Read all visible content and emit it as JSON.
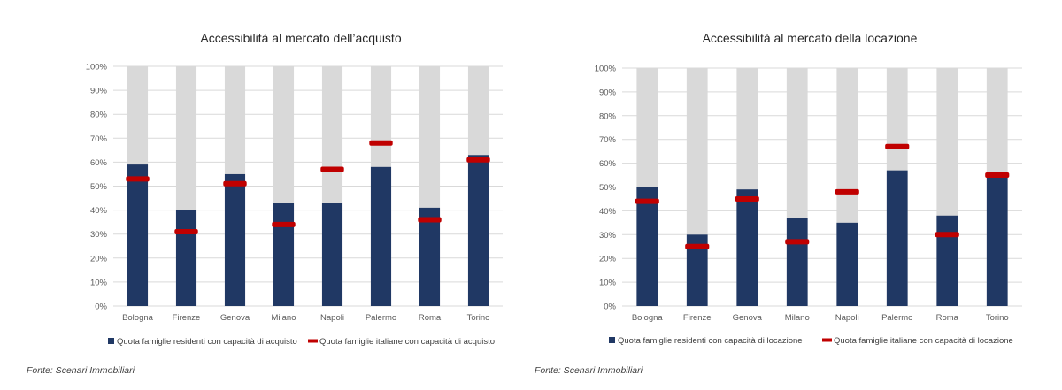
{
  "colors": {
    "bar": "#203864",
    "marker": "#c00000",
    "background_bar": "#d9d9d9",
    "grid": "#d9d9d9"
  },
  "chart_data": [
    {
      "type": "bar",
      "title": "Accessibilità al mercato dell’acquisto",
      "categories": [
        "Bologna",
        "Firenze",
        "Genova",
        "Milano",
        "Napoli",
        "Palermo",
        "Roma",
        "Torino"
      ],
      "series": [
        {
          "name": "Quota famiglie residenti con capacità di acquisto",
          "kind": "bar",
          "values": [
            59,
            40,
            55,
            43,
            43,
            58,
            41,
            63
          ]
        },
        {
          "name": "Quota famiglie italiane con capacità di acquisto",
          "kind": "marker",
          "values": [
            53,
            31,
            51,
            34,
            57,
            68,
            36,
            61
          ]
        }
      ],
      "yticks": [
        "0%",
        "10%",
        "20%",
        "30%",
        "40%",
        "50%",
        "60%",
        "70%",
        "80%",
        "90%",
        "100%"
      ],
      "ylim": [
        0,
        100
      ],
      "legend": "bottom",
      "source": "Fonte: Scenari Immobiliari"
    },
    {
      "type": "bar",
      "title": "Accessibilità al mercato della locazione",
      "categories": [
        "Bologna",
        "Firenze",
        "Genova",
        "Milano",
        "Napoli",
        "Palermo",
        "Roma",
        "Torino"
      ],
      "series": [
        {
          "name": "Quota famiglie residenti con capacità di locazione",
          "kind": "bar",
          "values": [
            50,
            30,
            49,
            37,
            35,
            57,
            38,
            55
          ]
        },
        {
          "name": "Quota famiglie italiane con capacità di locazione",
          "kind": "marker",
          "values": [
            44,
            25,
            45,
            27,
            48,
            67,
            30,
            55
          ]
        }
      ],
      "yticks": [
        "0%",
        "10%",
        "20%",
        "30%",
        "40%",
        "50%",
        "60%",
        "70%",
        "80%",
        "90%",
        "100%"
      ],
      "ylim": [
        0,
        100
      ],
      "legend": "bottom",
      "source": "Fonte: Scenari Immobiliari"
    }
  ]
}
